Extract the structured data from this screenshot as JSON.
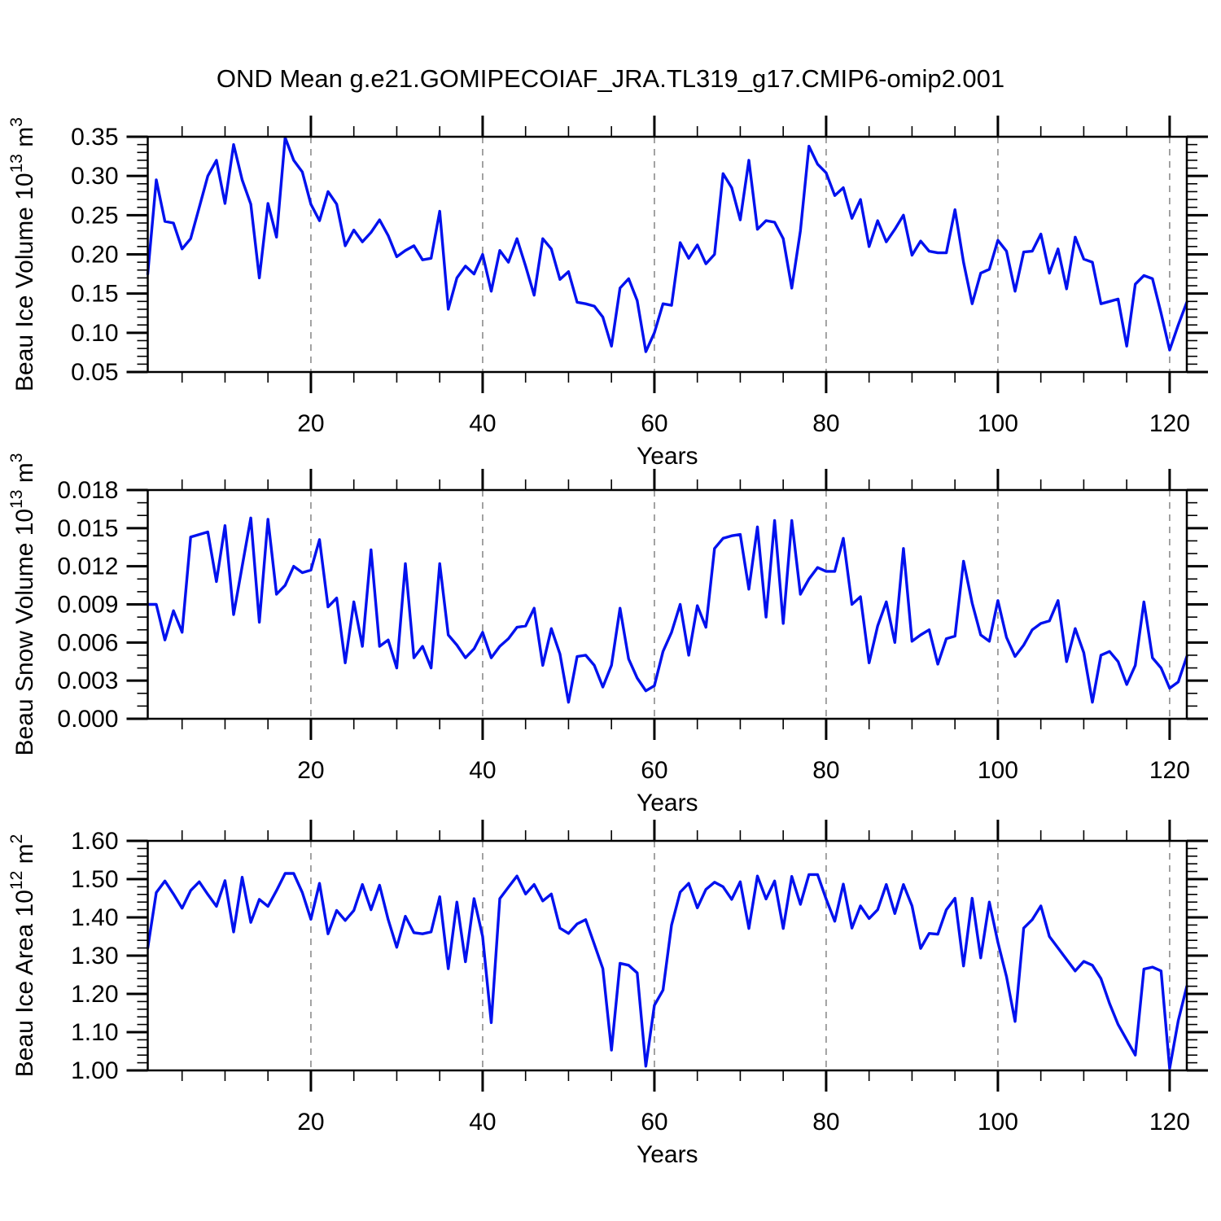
{
  "title": "OND Mean g.e21.GOMIPECOIAF_JRA.TL319_g17.CMIP6-omip2.001",
  "line_color": "#0011ee",
  "grid_color": "#999999",
  "axis_color": "#000000",
  "x_axis": {
    "label": "Years",
    "range": [
      1,
      122
    ],
    "ticks": [
      20,
      40,
      60,
      80,
      100,
      120
    ],
    "tick_labels": [
      "20",
      "40",
      "60",
      "80",
      "100",
      "120"
    ],
    "minor_step": 5
  },
  "chart_data": [
    {
      "type": "line",
      "name": "beau-ice-volume",
      "ylabel": {
        "text": "Beau Ice Volume 10",
        "sup": "13",
        "text2": " m",
        "sup2": "3"
      },
      "ylim": [
        0.05,
        0.35
      ],
      "yticks": [
        0.05,
        0.1,
        0.15,
        0.2,
        0.25,
        0.3,
        0.35
      ],
      "ytick_labels": [
        "0.05",
        "0.10",
        "0.15",
        "0.20",
        "0.25",
        "0.30",
        "0.35"
      ],
      "y_minor_step": 0.01,
      "x_start": 1,
      "values": [
        0.175,
        0.295,
        0.242,
        0.24,
        0.207,
        0.22,
        0.26,
        0.3,
        0.32,
        0.265,
        0.34,
        0.295,
        0.264,
        0.17,
        0.265,
        0.222,
        0.349,
        0.32,
        0.305,
        0.264,
        0.243,
        0.28,
        0.264,
        0.211,
        0.231,
        0.216,
        0.228,
        0.244,
        0.224,
        0.197,
        0.205,
        0.211,
        0.193,
        0.195,
        0.255,
        0.13,
        0.17,
        0.185,
        0.175,
        0.2,
        0.153,
        0.205,
        0.19,
        0.22,
        0.185,
        0.148,
        0.22,
        0.207,
        0.168,
        0.178,
        0.139,
        0.137,
        0.134,
        0.12,
        0.083,
        0.157,
        0.169,
        0.141,
        0.076,
        0.1,
        0.137,
        0.135,
        0.215,
        0.195,
        0.212,
        0.188,
        0.2,
        0.303,
        0.285,
        0.244,
        0.32,
        0.232,
        0.243,
        0.241,
        0.22,
        0.157,
        0.23,
        0.338,
        0.315,
        0.304,
        0.275,
        0.285,
        0.246,
        0.27,
        0.21,
        0.243,
        0.216,
        0.232,
        0.25,
        0.199,
        0.217,
        0.204,
        0.202,
        0.202,
        0.257,
        0.19,
        0.137,
        0.176,
        0.181,
        0.218,
        0.204,
        0.153,
        0.203,
        0.204,
        0.226,
        0.176,
        0.207,
        0.156,
        0.222,
        0.194,
        0.19,
        0.137,
        0.14,
        0.143,
        0.083,
        0.162,
        0.173,
        0.169,
        0.125,
        0.078,
        0.11,
        0.139
      ]
    },
    {
      "type": "line",
      "name": "beau-snow-volume",
      "ylabel": {
        "text": "Beau Snow Volume 10",
        "sup": "13",
        "text2": " m",
        "sup2": "3"
      },
      "ylim": [
        0.0,
        0.018
      ],
      "yticks": [
        0.0,
        0.003,
        0.006,
        0.009,
        0.012,
        0.015,
        0.018
      ],
      "ytick_labels": [
        "0.000",
        "0.003",
        "0.006",
        "0.009",
        "0.012",
        "0.015",
        "0.018"
      ],
      "y_minor_step": 0.001,
      "x_start": 1,
      "values": [
        0.009,
        0.009,
        0.0062,
        0.0085,
        0.0068,
        0.0143,
        0.0145,
        0.0147,
        0.0108,
        0.0152,
        0.0082,
        0.012,
        0.0158,
        0.0076,
        0.0157,
        0.0098,
        0.0105,
        0.012,
        0.0115,
        0.0117,
        0.0141,
        0.0088,
        0.0095,
        0.0044,
        0.0092,
        0.0057,
        0.0133,
        0.0057,
        0.0062,
        0.004,
        0.0122,
        0.0048,
        0.0057,
        0.004,
        0.0122,
        0.0066,
        0.0058,
        0.0048,
        0.0055,
        0.0068,
        0.0048,
        0.0057,
        0.0063,
        0.0072,
        0.0073,
        0.0087,
        0.0042,
        0.0071,
        0.0051,
        0.0013,
        0.0049,
        0.005,
        0.0042,
        0.0025,
        0.0042,
        0.0087,
        0.0047,
        0.0032,
        0.0022,
        0.0026,
        0.0053,
        0.0068,
        0.009,
        0.005,
        0.0089,
        0.0072,
        0.0134,
        0.0142,
        0.0144,
        0.0145,
        0.0102,
        0.0151,
        0.008,
        0.0156,
        0.0075,
        0.0156,
        0.0098,
        0.011,
        0.0119,
        0.0116,
        0.0116,
        0.0142,
        0.009,
        0.0096,
        0.0044,
        0.0073,
        0.0092,
        0.006,
        0.0134,
        0.0061,
        0.0066,
        0.007,
        0.0043,
        0.0063,
        0.0065,
        0.0124,
        0.0091,
        0.0066,
        0.0061,
        0.0093,
        0.0064,
        0.0049,
        0.0058,
        0.007,
        0.0075,
        0.0077,
        0.0093,
        0.0045,
        0.0071,
        0.0052,
        0.0013,
        0.005,
        0.0053,
        0.0045,
        0.0027,
        0.0042,
        0.0092,
        0.0048,
        0.004,
        0.0024,
        0.0029,
        0.0049
      ]
    },
    {
      "type": "line",
      "name": "beau-ice-area",
      "ylabel": {
        "text": "Beau Ice Area 10",
        "sup": "12",
        "text2": " m",
        "sup2": "2"
      },
      "ylim": [
        1.0,
        1.6
      ],
      "yticks": [
        1.0,
        1.1,
        1.2,
        1.3,
        1.4,
        1.5,
        1.6
      ],
      "ytick_labels": [
        "1.00",
        "1.10",
        "1.20",
        "1.30",
        "1.40",
        "1.50",
        "1.60"
      ],
      "y_minor_step": 0.02,
      "x_start": 1,
      "values": [
        1.32,
        1.465,
        1.495,
        1.461,
        1.424,
        1.47,
        1.493,
        1.46,
        1.429,
        1.496,
        1.362,
        1.505,
        1.387,
        1.447,
        1.429,
        1.47,
        1.515,
        1.515,
        1.465,
        1.395,
        1.489,
        1.357,
        1.418,
        1.392,
        1.418,
        1.486,
        1.42,
        1.484,
        1.394,
        1.322,
        1.403,
        1.36,
        1.357,
        1.362,
        1.454,
        1.266,
        1.44,
        1.284,
        1.449,
        1.35,
        1.125,
        1.449,
        1.479,
        1.508,
        1.461,
        1.486,
        1.443,
        1.461,
        1.372,
        1.358,
        1.383,
        1.394,
        1.33,
        1.266,
        1.053,
        1.28,
        1.275,
        1.255,
        1.011,
        1.17,
        1.21,
        1.38,
        1.466,
        1.489,
        1.425,
        1.473,
        1.492,
        1.48,
        1.447,
        1.493,
        1.371,
        1.508,
        1.448,
        1.495,
        1.371,
        1.507,
        1.434,
        1.512,
        1.512,
        1.448,
        1.39,
        1.487,
        1.372,
        1.43,
        1.397,
        1.42,
        1.486,
        1.41,
        1.486,
        1.43,
        1.319,
        1.358,
        1.356,
        1.42,
        1.45,
        1.273,
        1.45,
        1.294,
        1.44,
        1.335,
        1.245,
        1.128,
        1.372,
        1.394,
        1.43,
        1.35,
        1.32,
        1.29,
        1.26,
        1.285,
        1.275,
        1.24,
        1.175,
        1.12,
        1.08,
        1.04,
        1.265,
        1.27,
        1.26,
        1.005,
        1.13,
        1.22
      ]
    }
  ]
}
